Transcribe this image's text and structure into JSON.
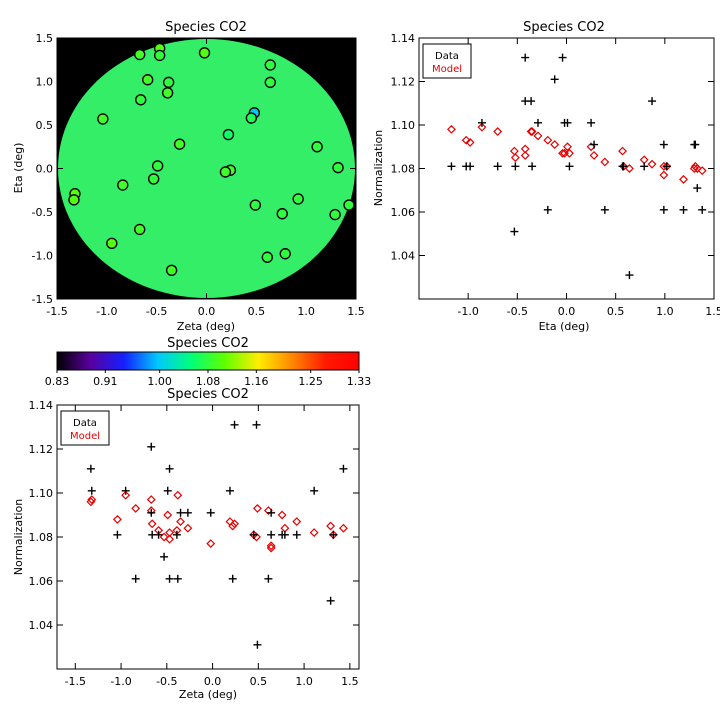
{
  "colors": {
    "data": "#000000",
    "model": "#e60000",
    "map_field": "#33ee66",
    "map_background": "#000000"
  },
  "chart_data": [
    {
      "id": "map",
      "type": "scatter",
      "title": "Species CO2",
      "xlabel": "Zeta (deg)",
      "ylabel": "Eta (deg)",
      "xlim": [
        -1.5,
        1.5
      ],
      "ylim": [
        -1.5,
        1.5
      ],
      "xticks": [
        "-1.5",
        "-1.0",
        "-0.5",
        "0.0",
        "0.5",
        "1.0",
        "1.5"
      ],
      "yticks": [
        "-1.5",
        "-1.0",
        "-0.5",
        "0.0",
        "0.5",
        "1.0",
        "1.5"
      ],
      "field_value": 1.08,
      "background": "black outside circular field of view",
      "points": [
        {
          "x": -0.67,
          "y": 1.31,
          "v": 1.09
        },
        {
          "x": -0.47,
          "y": 1.38,
          "v": 1.1
        },
        {
          "x": -0.47,
          "y": 1.3,
          "v": 1.08
        },
        {
          "x": -0.02,
          "y": 1.33,
          "v": 1.1
        },
        {
          "x": 0.64,
          "y": 1.19,
          "v": 1.08
        },
        {
          "x": -0.59,
          "y": 1.02,
          "v": 1.09
        },
        {
          "x": -0.38,
          "y": 0.99,
          "v": 1.08
        },
        {
          "x": 0.64,
          "y": 0.99,
          "v": 1.08
        },
        {
          "x": -0.39,
          "y": 0.87,
          "v": 1.09
        },
        {
          "x": -0.66,
          "y": 0.79,
          "v": 1.08
        },
        {
          "x": 0.48,
          "y": 0.64,
          "v": 1.0
        },
        {
          "x": 0.45,
          "y": 0.58,
          "v": 1.07
        },
        {
          "x": -1.04,
          "y": 0.57,
          "v": 1.09
        },
        {
          "x": 0.22,
          "y": 0.39,
          "v": 1.06
        },
        {
          "x": -0.27,
          "y": 0.28,
          "v": 1.09
        },
        {
          "x": 1.11,
          "y": 0.25,
          "v": 1.08
        },
        {
          "x": -0.49,
          "y": 0.03,
          "v": 1.08
        },
        {
          "x": 1.32,
          "y": 0.01,
          "v": 1.08
        },
        {
          "x": 0.24,
          "y": -0.02,
          "v": 1.09
        },
        {
          "x": 0.19,
          "y": -0.04,
          "v": 1.09
        },
        {
          "x": -0.53,
          "y": -0.12,
          "v": 1.08
        },
        {
          "x": -0.84,
          "y": -0.19,
          "v": 1.09
        },
        {
          "x": -1.32,
          "y": -0.29,
          "v": 1.1
        },
        {
          "x": -1.33,
          "y": -0.36,
          "v": 1.1
        },
        {
          "x": 0.92,
          "y": -0.35,
          "v": 1.08
        },
        {
          "x": 0.49,
          "y": -0.42,
          "v": 1.08
        },
        {
          "x": 1.43,
          "y": -0.42,
          "v": 1.08
        },
        {
          "x": 0.76,
          "y": -0.52,
          "v": 1.08
        },
        {
          "x": 1.29,
          "y": -0.53,
          "v": 1.08
        },
        {
          "x": -0.67,
          "y": -0.7,
          "v": 1.09
        },
        {
          "x": -0.95,
          "y": -0.86,
          "v": 1.1
        },
        {
          "x": 0.79,
          "y": -0.98,
          "v": 1.08
        },
        {
          "x": 0.61,
          "y": -1.02,
          "v": 1.08
        },
        {
          "x": -0.35,
          "y": -1.17,
          "v": 1.09
        }
      ]
    },
    {
      "id": "colorbar",
      "type": "heatmap",
      "title": "Species CO2",
      "range": [
        0.83,
        1.33
      ],
      "ticks": [
        "0.83",
        "0.91",
        "1.00",
        "1.08",
        "1.16",
        "1.25",
        "1.33"
      ],
      "colormap": [
        "#000000",
        "#5a00a0",
        "#1420ff",
        "#00c8ff",
        "#00ff7a",
        "#60ff00",
        "#ffee00",
        "#ff8800",
        "#ff1a00",
        "#ff0000"
      ]
    },
    {
      "id": "eta_plot",
      "type": "scatter",
      "title": "Species CO2",
      "xlabel": "Eta (deg)",
      "ylabel": "Normalization",
      "xlim": [
        -1.5,
        1.5
      ],
      "ylim": [
        1.02,
        1.14
      ],
      "xticks": [
        "-1.0",
        "-0.5",
        "0.0",
        "0.5",
        "1.0",
        "1.5"
      ],
      "yticks": [
        "1.04",
        "1.06",
        "1.08",
        "1.10",
        "1.12",
        "1.14"
      ],
      "legend": {
        "position": "top-left",
        "entries": [
          "Data",
          "Model"
        ]
      },
      "series": [
        {
          "name": "Data",
          "marker": "plus",
          "x": [
            1.38,
            1.31,
            1.3,
            1.33,
            1.19,
            1.02,
            0.99,
            0.99,
            0.87,
            0.79,
            0.64,
            0.58,
            0.57,
            0.39,
            0.28,
            0.25,
            0.03,
            0.01,
            -0.02,
            -0.04,
            -0.12,
            -0.19,
            -0.29,
            -0.36,
            -0.35,
            -0.42,
            -0.42,
            -0.52,
            -0.53,
            -0.7,
            -0.86,
            -0.98,
            -1.02,
            -1.17
          ],
          "y": [
            1.061,
            1.091,
            1.091,
            1.071,
            1.061,
            1.081,
            1.091,
            1.061,
            1.111,
            1.081,
            1.031,
            1.081,
            1.081,
            1.061,
            1.091,
            1.101,
            1.081,
            1.101,
            1.101,
            1.131,
            1.121,
            1.061,
            1.101,
            1.111,
            1.081,
            1.131,
            1.111,
            1.081,
            1.051,
            1.081,
            1.101,
            1.081,
            1.081,
            1.081
          ]
        },
        {
          "name": "Model",
          "marker": "diamond",
          "x": [
            1.38,
            1.31,
            1.3,
            1.33,
            1.19,
            1.02,
            0.99,
            0.99,
            0.87,
            0.79,
            0.64,
            0.58,
            0.57,
            0.39,
            0.28,
            0.25,
            0.03,
            0.01,
            -0.02,
            -0.04,
            -0.12,
            -0.19,
            -0.29,
            -0.36,
            -0.35,
            -0.42,
            -0.42,
            -0.52,
            -0.53,
            -0.7,
            -0.86,
            -0.98,
            -1.02,
            -1.17
          ],
          "y": [
            1.079,
            1.081,
            1.08,
            1.08,
            1.075,
            1.081,
            1.077,
            1.081,
            1.082,
            1.084,
            1.08,
            1.081,
            1.088,
            1.083,
            1.086,
            1.09,
            1.087,
            1.09,
            1.087,
            1.087,
            1.091,
            1.093,
            1.095,
            1.097,
            1.097,
            1.086,
            1.089,
            1.085,
            1.088,
            1.097,
            1.099,
            1.092,
            1.093,
            1.098
          ]
        }
      ]
    },
    {
      "id": "zeta_plot",
      "type": "scatter",
      "title": "Species CO2",
      "xlabel": "Zeta (deg)",
      "ylabel": "Normalization",
      "xlim": [
        -1.7,
        1.6
      ],
      "ylim": [
        1.02,
        1.14
      ],
      "xticks": [
        "-1.5",
        "-1.0",
        "-0.5",
        "0.0",
        "0.5",
        "1.0",
        "1.5"
      ],
      "yticks": [
        "1.04",
        "1.06",
        "1.08",
        "1.10",
        "1.12",
        "1.14"
      ],
      "legend": {
        "position": "top-left",
        "entries": [
          "Data",
          "Model"
        ]
      },
      "series": [
        {
          "name": "Data",
          "marker": "plus",
          "x": [
            -1.32,
            -1.33,
            -1.04,
            -0.95,
            -0.84,
            -0.67,
            -0.67,
            -0.66,
            -0.59,
            -0.53,
            -0.49,
            -0.47,
            -0.47,
            -0.39,
            -0.38,
            -0.35,
            -0.27,
            -0.02,
            0.19,
            0.22,
            0.24,
            0.45,
            0.48,
            0.49,
            0.61,
            0.64,
            0.64,
            0.76,
            0.79,
            0.92,
            1.11,
            1.29,
            1.32,
            1.43
          ],
          "y": [
            1.101,
            1.111,
            1.081,
            1.101,
            1.061,
            1.091,
            1.121,
            1.081,
            1.081,
            1.071,
            1.101,
            1.061,
            1.111,
            1.081,
            1.061,
            1.091,
            1.091,
            1.091,
            1.101,
            1.061,
            1.131,
            1.081,
            1.131,
            1.031,
            1.061,
            1.091,
            1.081,
            1.081,
            1.081,
            1.081,
            1.101,
            1.051,
            1.081,
            1.111
          ]
        },
        {
          "name": "Model",
          "marker": "diamond",
          "x": [
            -1.32,
            -1.33,
            -1.04,
            -0.95,
            -0.84,
            -0.67,
            -0.67,
            -0.66,
            -0.59,
            -0.53,
            -0.49,
            -0.47,
            -0.47,
            -0.39,
            -0.38,
            -0.35,
            -0.27,
            -0.02,
            0.19,
            0.22,
            0.24,
            0.45,
            0.48,
            0.49,
            0.61,
            0.64,
            0.64,
            0.76,
            0.79,
            0.92,
            1.11,
            1.29,
            1.32,
            1.43
          ],
          "y": [
            1.097,
            1.096,
            1.088,
            1.099,
            1.093,
            1.097,
            1.092,
            1.086,
            1.083,
            1.08,
            1.09,
            1.082,
            1.079,
            1.083,
            1.099,
            1.087,
            1.084,
            1.077,
            1.087,
            1.085,
            1.086,
            1.081,
            1.08,
            1.093,
            1.092,
            1.075,
            1.076,
            1.09,
            1.084,
            1.087,
            1.082,
            1.085,
            1.081,
            1.084
          ]
        }
      ]
    }
  ]
}
